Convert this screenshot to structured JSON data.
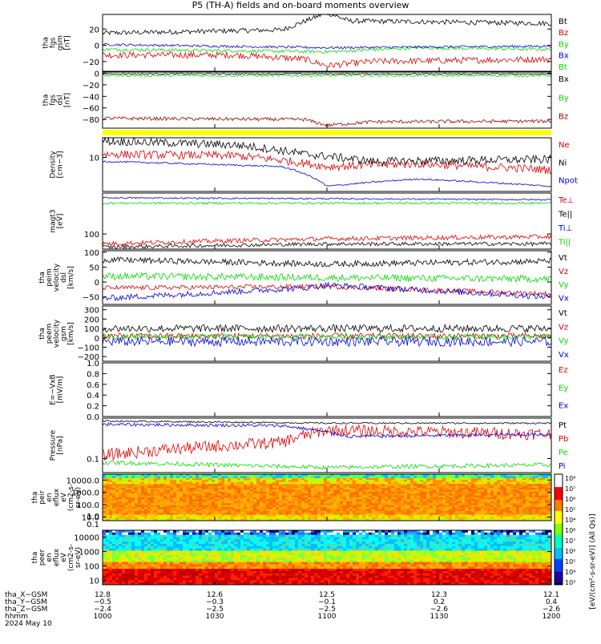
{
  "title": "P5 (TH-A) fields and on-board moments overview",
  "chart_data": [
    {
      "type": "line",
      "panel": "fgs-gsm",
      "ylabel_lines": [
        "tha",
        "fgs",
        "gsm",
        "[nT]"
      ],
      "yrange": [
        -32,
        38
      ],
      "yticks": [
        {
          "v": 20,
          "l": "20"
        },
        {
          "v": 0,
          "l": "0"
        },
        {
          "v": -20,
          "l": "−20"
        }
      ],
      "series": [
        {
          "name": "Bt",
          "color": "#000000",
          "segments": [
            [
              0,
              15
            ],
            [
              0.4,
              19
            ],
            [
              0.5,
              40
            ],
            [
              0.55,
              30
            ],
            [
              1,
              27
            ]
          ],
          "noise": 3
        },
        {
          "name": "Bz",
          "color": "#dd0000",
          "segments": [
            [
              0,
              -12
            ],
            [
              0.3,
              -12
            ],
            [
              0.45,
              -17
            ],
            [
              0.5,
              -25
            ],
            [
              0.6,
              -20
            ],
            [
              1,
              -17
            ]
          ],
          "noise": 4
        },
        {
          "name": "By",
          "color": "#00dd00",
          "segments": [
            [
              0,
              -5
            ],
            [
              0.5,
              -8
            ],
            [
              0.7,
              -3
            ],
            [
              1,
              -5
            ]
          ],
          "noise": 2
        },
        {
          "name": "Bx",
          "color": "#0000dd",
          "segments": [
            [
              0,
              1
            ],
            [
              0.5,
              -3
            ],
            [
              1,
              -1
            ]
          ],
          "noise": 1.5
        },
        {
          "name": "Bt",
          "color": "#00dd00",
          "legend_only": true
        }
      ]
    },
    {
      "type": "line",
      "panel": "fgs-dsl",
      "ylabel_lines": [
        "tha",
        "fgs",
        "dsl",
        "[nT]"
      ],
      "yrange": [
        -95,
        2
      ],
      "yticks": [
        {
          "v": 0,
          "l": "0"
        },
        {
          "v": -20,
          "l": "−20"
        },
        {
          "v": -40,
          "l": "−40"
        },
        {
          "v": -60,
          "l": "−60"
        },
        {
          "v": -80,
          "l": "−80"
        }
      ],
      "series": [
        {
          "name": "Bx",
          "color": "#000000",
          "segments": [
            [
              0,
              -1
            ],
            [
              1,
              -1
            ]
          ],
          "noise": 1
        },
        {
          "name": "By",
          "color": "#00dd00",
          "segments": [
            [
              0,
              -4
            ],
            [
              1,
              -4
            ]
          ],
          "noise": 2
        },
        {
          "name": "Bz",
          "color": "#990000",
          "segments": [
            [
              0,
              -78
            ],
            [
              0.45,
              -80
            ],
            [
              0.5,
              -90
            ],
            [
              0.6,
              -84
            ],
            [
              1,
              -83
            ]
          ],
          "noise": 3
        }
      ]
    },
    {
      "type": "line",
      "panel": "density",
      "log": true,
      "ylabel_lines": [
        "Density",
        "[cm−3]"
      ],
      "yrange": [
        1.5,
        30
      ],
      "yticks": [
        {
          "v": 10,
          "l": "10"
        }
      ],
      "series": [
        {
          "name": "Ne",
          "color": "#dd0000",
          "segments": [
            [
              0,
              12
            ],
            [
              0.3,
              11
            ],
            [
              0.5,
              6
            ],
            [
              0.7,
              7
            ],
            [
              1,
              5
            ]
          ],
          "noise": 0.1
        },
        {
          "name": "Ni",
          "color": "#000000",
          "segments": [
            [
              0,
              25
            ],
            [
              0.3,
              20
            ],
            [
              0.45,
              12
            ],
            [
              0.6,
              8
            ],
            [
              1,
              9
            ]
          ],
          "noise": 0.1
        },
        {
          "name": "Npot",
          "color": "#0000dd",
          "segments": [
            [
              0,
              8
            ],
            [
              0.4,
              6
            ],
            [
              0.5,
              2
            ],
            [
              0.7,
              3
            ],
            [
              1,
              2
            ]
          ],
          "noise": 0.02
        }
      ]
    },
    {
      "type": "line",
      "panel": "temperature",
      "log": true,
      "ylabel_lines": [
        "magt3",
        "[eV]"
      ],
      "yrange": [
        40,
        1200
      ],
      "yticks": [
        {
          "v": 100,
          "l": "100"
        }
      ],
      "series": [
        {
          "name": "Te⊥",
          "color": "#dd0000",
          "segments": [
            [
              0,
              55
            ],
            [
              0.5,
              75
            ],
            [
              1,
              85
            ]
          ],
          "noise": 0.06
        },
        {
          "name": "Te||",
          "color": "#000000",
          "segments": [
            [
              0,
              45
            ],
            [
              0.5,
              55
            ],
            [
              1,
              55
            ]
          ],
          "noise": 0.05
        },
        {
          "name": "Ti⊥",
          "color": "#0000dd",
          "segments": [
            [
              0,
              900
            ],
            [
              1,
              800
            ]
          ],
          "noise": 0.02
        },
        {
          "name": "Ti||",
          "color": "#00dd00",
          "segments": [
            [
              0,
              650
            ],
            [
              1,
              650
            ]
          ],
          "noise": 0.03
        }
      ]
    },
    {
      "type": "line",
      "panel": "velocity-dsl",
      "ylabel_lines": [
        "tha",
        "peim",
        "velocity",
        "dsl",
        "[km/s]"
      ],
      "yrange": [
        -75,
        105
      ],
      "yticks": [
        {
          "v": 100,
          "l": "100"
        },
        {
          "v": 50,
          "l": "50"
        },
        {
          "v": 0,
          "l": "0"
        },
        {
          "v": -50,
          "l": "−50"
        }
      ],
      "series": [
        {
          "name": "Vt",
          "color": "#000000",
          "segments": [
            [
              0,
              75
            ],
            [
              0.5,
              60
            ],
            [
              1,
              70
            ]
          ],
          "noise": 10
        },
        {
          "name": "Vz",
          "color": "#dd0000",
          "segments": [
            [
              0,
              -20
            ],
            [
              0.5,
              -15
            ],
            [
              1,
              -40
            ]
          ],
          "noise": 8
        },
        {
          "name": "Vy",
          "color": "#00dd00",
          "segments": [
            [
              0,
              20
            ],
            [
              0.5,
              15
            ],
            [
              1,
              10
            ]
          ],
          "noise": 12
        },
        {
          "name": "Vx",
          "color": "#0000dd",
          "segments": [
            [
              0,
              -55
            ],
            [
              0.45,
              -20
            ],
            [
              0.5,
              -10
            ],
            [
              1,
              -50
            ]
          ],
          "noise": 10
        }
      ]
    },
    {
      "type": "line",
      "panel": "velocity-gsm",
      "ylabel_lines": [
        "tha",
        "peem",
        "velocity",
        "gsm",
        "[km/s]"
      ],
      "yrange": [
        -250,
        340
      ],
      "yticks": [
        {
          "v": 300,
          "l": "300"
        },
        {
          "v": 200,
          "l": "200"
        },
        {
          "v": 100,
          "l": "100"
        },
        {
          "v": 0,
          "l": "0"
        },
        {
          "v": -100,
          "l": "−100"
        },
        {
          "v": -200,
          "l": "−200"
        }
      ],
      "series": [
        {
          "name": "Vt",
          "color": "#000000",
          "segments": [
            [
              0,
              100
            ],
            [
              1,
              100
            ]
          ],
          "noise": 40
        },
        {
          "name": "Vz",
          "color": "#dd0000",
          "segments": [
            [
              0,
              20
            ],
            [
              1,
              20
            ]
          ],
          "noise": 30
        },
        {
          "name": "Vy",
          "color": "#00dd00",
          "segments": [
            [
              0,
              10
            ],
            [
              1,
              10
            ]
          ],
          "noise": 30
        },
        {
          "name": "Vx",
          "color": "#0000dd",
          "segments": [
            [
              0,
              -40
            ],
            [
              1,
              -40
            ]
          ],
          "noise": 50
        }
      ]
    },
    {
      "type": "line",
      "panel": "efield",
      "ylabel_lines": [
        "E=−VxB",
        "[mV/m]"
      ],
      "yrange": [
        0,
        1
      ],
      "yticks": [
        {
          "v": 1.0,
          "l": "1.0"
        },
        {
          "v": 0.8,
          "l": "0.8"
        },
        {
          "v": 0.6,
          "l": "0.6"
        },
        {
          "v": 0.4,
          "l": "0.4"
        },
        {
          "v": 0.2,
          "l": "0.2"
        },
        {
          "v": 0.0,
          "l": "0.0"
        }
      ],
      "series": [
        {
          "name": "Ez",
          "color": "#dd0000",
          "legend_only": true
        },
        {
          "name": "Ey",
          "color": "#00dd00",
          "legend_only": true
        },
        {
          "name": "Ex",
          "color": "#0000dd",
          "legend_only": true
        }
      ]
    },
    {
      "type": "line",
      "panel": "pressure",
      "log": true,
      "ylabel_lines": [
        "Pressure",
        "[nPa]"
      ],
      "yrange": [
        0.045,
        1.0
      ],
      "yticks": [
        {
          "v": 0.1,
          "l": "0.1"
        }
      ],
      "series": [
        {
          "name": "Pt",
          "color": "#000000",
          "segments": [
            [
              0,
              0.85
            ],
            [
              0.5,
              0.75
            ],
            [
              1,
              0.75
            ]
          ],
          "noise": 0.02
        },
        {
          "name": "Pb",
          "color": "#dd0000",
          "segments": [
            [
              0,
              0.12
            ],
            [
              0.4,
              0.25
            ],
            [
              0.5,
              0.5
            ],
            [
              1,
              0.4
            ]
          ],
          "noise": 0.15
        },
        {
          "name": "Pe",
          "color": "#00dd00",
          "segments": [
            [
              0,
              0.08
            ],
            [
              0.5,
              0.06
            ],
            [
              1,
              0.07
            ]
          ],
          "noise": 0.05
        },
        {
          "name": "Pi",
          "color": "#0000dd",
          "segments": [
            [
              0,
              0.7
            ],
            [
              0.4,
              0.65
            ],
            [
              0.55,
              0.35
            ],
            [
              1,
              0.4
            ]
          ],
          "noise": 0.04
        }
      ]
    },
    {
      "type": "heatmap",
      "panel": "ion-spectrogram",
      "ylabel_lines": [
        "tha",
        "peir",
        "en",
        "eflux",
        "eV",
        "(cm2-s-",
        "sr-eV)"
      ],
      "yrange": [
        5,
        30000
      ],
      "log": true,
      "yticks": [
        {
          "v": 10000,
          "l": "10000.0"
        },
        {
          "v": 1000,
          "l": "1000.0"
        },
        {
          "v": 100,
          "l": "100.0"
        },
        {
          "v": 10,
          "l": "10.0"
        }
      ]
    },
    {
      "type": "heatmap",
      "panel": "electron-spectrogram",
      "ylabel_lines": [
        "tha",
        "peer",
        "en",
        "eflux",
        "eV",
        "(cm2-s-",
        "sr-eV)"
      ],
      "yrange": [
        5,
        30000
      ],
      "log": true,
      "yticks": [
        {
          "v": 10000,
          "l": "10000"
        },
        {
          "v": 1000,
          "l": "1000"
        },
        {
          "v": 100,
          "l": "100"
        },
        {
          "v": 10,
          "l": "10"
        }
      ],
      "extra_labels": [
        {
          "v": 1.0,
          "l": "1.0"
        },
        {
          "v": 0.1,
          "l": "0.1"
        }
      ]
    }
  ],
  "colorbar": {
    "ticks": [
      "10⁸",
      "10⁷",
      "10⁶",
      "10⁵",
      "10⁴",
      "10⁸",
      "10⁷",
      "10⁶",
      "10⁵",
      "10⁴",
      "10³"
    ],
    "label": "[eV/(cm²-s-sr-eV)] (All Qs)]"
  },
  "status_bar_color": "#ffff00",
  "x_axis": {
    "rows": [
      {
        "label": "tha_X−GSM",
        "values": [
          "12.8",
          "12.6",
          "12.5",
          "12.3",
          "12.1"
        ]
      },
      {
        "label": "tha_Y−GSM",
        "values": [
          "−0.5",
          "−0.3",
          "−0.1",
          "0.2",
          "0.4"
        ]
      },
      {
        "label": "tha_Z−GSM",
        "values": [
          "−2.4",
          "−2.5",
          "−2.5",
          "−2.6",
          "−2.6"
        ]
      },
      {
        "label": "hhmm",
        "values": [
          "1000",
          "1030",
          "1100",
          "1130",
          "1200"
        ]
      }
    ],
    "date": "2024 May 10"
  }
}
